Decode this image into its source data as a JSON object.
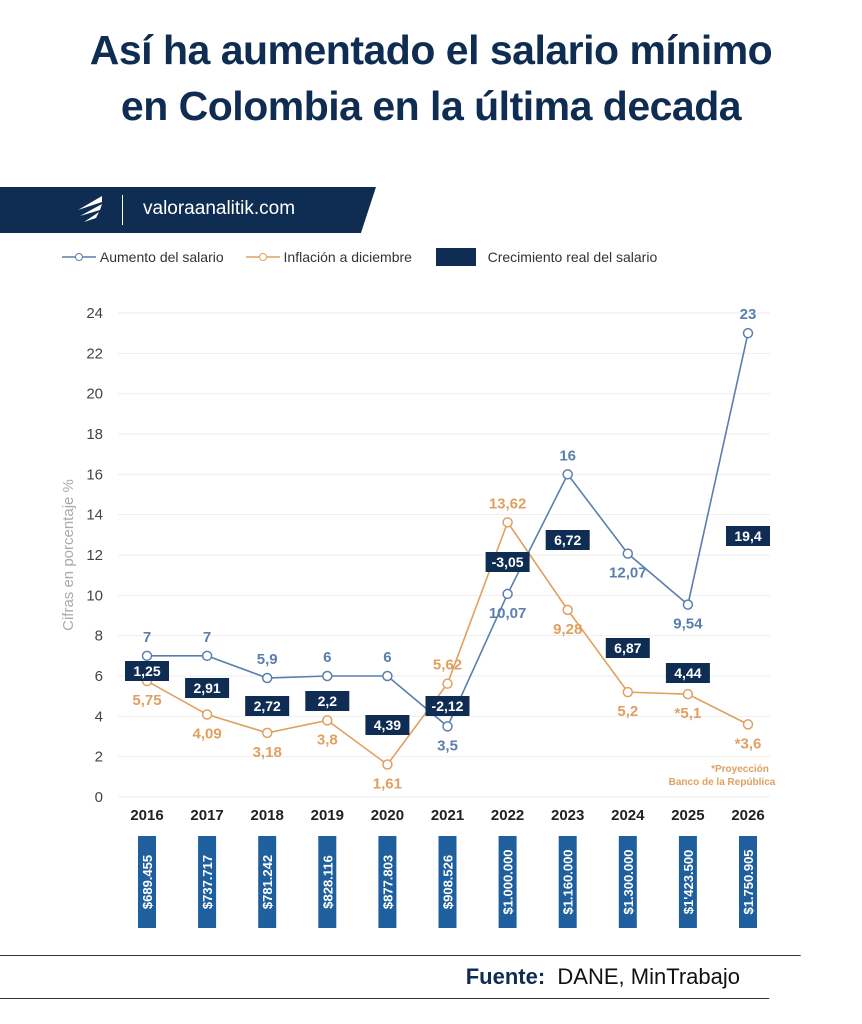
{
  "title_line1": "Así ha aumentado el salario mínimo",
  "title_line2": "en Colombia en la última decada",
  "brand": "valoraanalitik.com",
  "source_label": "Fuente:",
  "source_text": "DANE, MinTrabajo",
  "note_line1": "*Proyección",
  "note_line2": "Banco de la República",
  "colors": {
    "navy": "#0f2d52",
    "blue_line": "#5a7fae",
    "orange": "#e0a060",
    "wage_box": "#1f5f9e"
  },
  "chart_data": {
    "type": "line",
    "ylabel": "Cifras en porcentaje %",
    "ylim": [
      0,
      24
    ],
    "yticks": [
      0,
      2,
      4,
      6,
      8,
      10,
      12,
      14,
      16,
      18,
      20,
      22,
      24
    ],
    "grid": true,
    "legend_position": "top",
    "categories": [
      "2016",
      "2017",
      "2018",
      "2019",
      "2020",
      "2021",
      "2022",
      "2023",
      "2024",
      "2025",
      "2026"
    ],
    "series": [
      {
        "name": "Aumento del salario",
        "values": [
          7,
          7,
          5.9,
          6,
          6,
          3.5,
          10.07,
          16,
          12.07,
          9.54,
          23
        ],
        "labels": [
          "7",
          "7",
          "5,9",
          "6",
          "6",
          "3,5",
          "10,07",
          "16",
          "12,07",
          "9,54",
          "23"
        ]
      },
      {
        "name": "Inflación a diciembre",
        "values": [
          5.75,
          4.09,
          3.18,
          3.8,
          1.61,
          5.62,
          13.62,
          9.28,
          5.2,
          5.1,
          3.6
        ],
        "labels": [
          "5,75",
          "4,09",
          "3,18",
          "3,8",
          "1,61",
          "5,62",
          "13,62",
          "9,28",
          "5,2",
          "*5,1",
          "*3,6"
        ]
      },
      {
        "name": "Crecimiento real del salario",
        "values": [
          1.25,
          2.91,
          2.72,
          2.2,
          4.39,
          -2.12,
          -3.05,
          6.72,
          6.87,
          4.44,
          19.4
        ],
        "labels": [
          "1,25",
          "2,91",
          "2,72",
          "2,2",
          "4,39",
          "-2,12",
          "-3,05",
          "6,72",
          "6,87",
          "4,44",
          "19,4"
        ]
      }
    ],
    "minimum_wage": [
      "$689.455",
      "$737.717",
      "$781.242",
      "$828.116",
      "$877.803",
      "$908.526",
      "$1.000.000",
      "$1.160.000",
      "$1.300.000",
      "$1'423.500",
      "$1.750.905"
    ]
  }
}
